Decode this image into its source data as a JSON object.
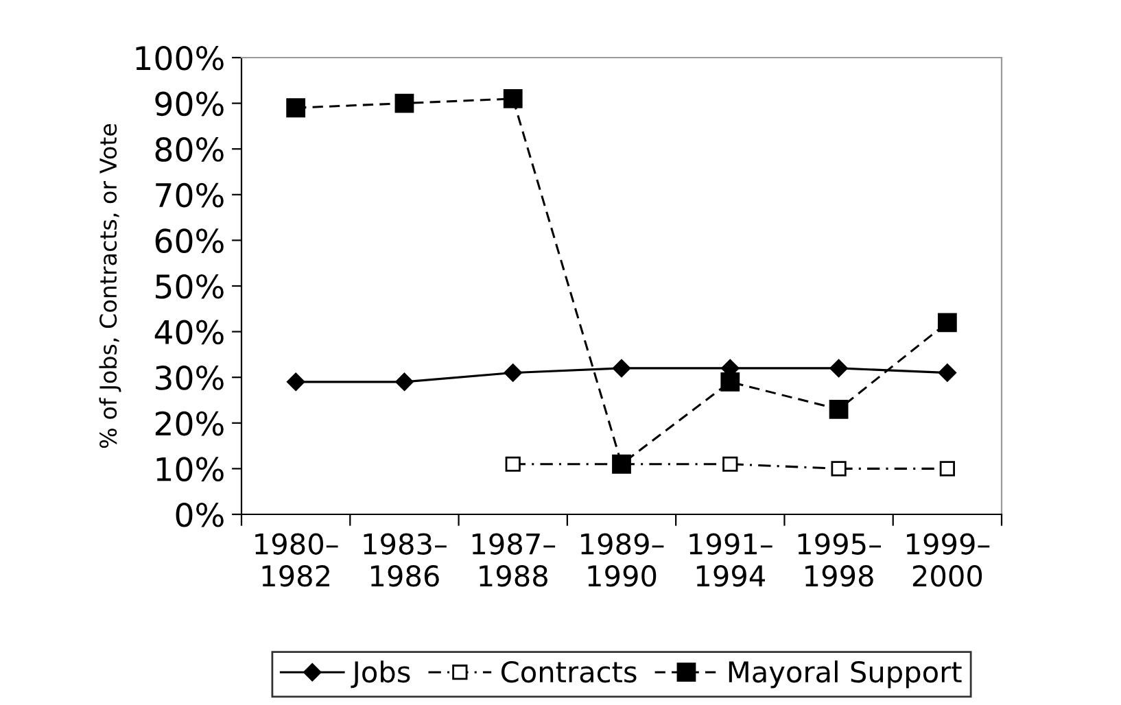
{
  "chart_data": {
    "type": "line",
    "ylabel": "% of Jobs, Contracts, or Vote",
    "categories": [
      "1980–\n1982",
      "1983–\n1986",
      "1987–\n1988",
      "1989–\n1990",
      "1991–\n1994",
      "1995–\n1998",
      "1999–\n2000"
    ],
    "series": [
      {
        "name": "Jobs",
        "color": "#000000",
        "marker": "diamond",
        "line_style": "solid",
        "values": [
          29,
          29,
          31,
          32,
          32,
          32,
          31
        ]
      },
      {
        "name": "Contracts",
        "color": "#000000",
        "marker": "square",
        "line_style": "dashdot",
        "values": [
          null,
          null,
          11,
          11,
          11,
          10,
          10
        ]
      },
      {
        "name": "Mayoral Support",
        "color": "#000000",
        "marker": "square",
        "line_style": "dashed",
        "values": [
          89,
          90,
          91,
          11,
          29,
          23,
          42
        ]
      }
    ],
    "ylim": [
      0,
      100
    ],
    "yticks": [
      {
        "value": 0,
        "label": "0%"
      },
      {
        "value": 10,
        "label": "10%"
      },
      {
        "value": 20,
        "label": "20%"
      },
      {
        "value": 30,
        "label": "30%"
      },
      {
        "value": 40,
        "label": "40%"
      },
      {
        "value": 50,
        "label": "50%"
      },
      {
        "value": 60,
        "label": "60%"
      },
      {
        "value": 70,
        "label": "70%"
      },
      {
        "value": 80,
        "label": "80%"
      },
      {
        "value": 90,
        "label": "90%"
      },
      {
        "value": 100,
        "label": "100%"
      }
    ],
    "grid": false,
    "legend": "bottom"
  }
}
